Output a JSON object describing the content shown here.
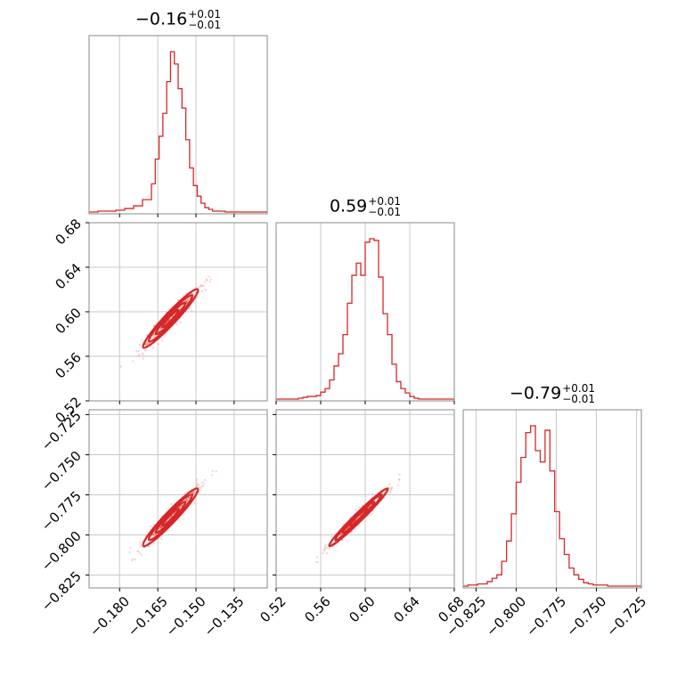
{
  "chart_data": {
    "type": "corner",
    "color": "#d62728",
    "grid": true,
    "parameters": [
      {
        "title": "−0.16",
        "err_plus": "+0.01",
        "err_minus": "−0.01",
        "range": [
          -0.192,
          -0.122
        ],
        "ticks": [
          -0.18,
          -0.165,
          -0.15,
          -0.135
        ],
        "tick_labels": [
          "−0.180",
          "−0.165",
          "−0.150",
          "−0.135"
        ],
        "median": -0.16,
        "sigma": 0.0045
      },
      {
        "title": "0.59",
        "err_plus": "+0.01",
        "err_minus": "−0.01",
        "range": [
          0.52,
          0.68
        ],
        "ticks": [
          0.52,
          0.56,
          0.6,
          0.64,
          0.68
        ],
        "tick_labels": [
          "0.52",
          "0.56",
          "0.60",
          "0.64",
          "0.68"
        ],
        "median": 0.594,
        "sigma": 0.011
      },
      {
        "title": "−0.79",
        "err_plus": "+0.01",
        "err_minus": "−0.01",
        "range": [
          -0.833,
          -0.722
        ],
        "ticks": [
          -0.825,
          -0.8,
          -0.775,
          -0.75,
          -0.725
        ],
        "tick_labels": [
          "−0.825",
          "−0.800",
          "−0.775",
          "−0.750",
          "−0.725"
        ],
        "median": -0.789,
        "sigma": 0.0075
      }
    ],
    "histograms": [
      {
        "parameter": 0,
        "bin_edges": [
          -0.192,
          -0.1885,
          -0.185,
          -0.1815,
          -0.178,
          -0.1745,
          -0.171,
          -0.1675,
          -0.166,
          -0.1645,
          -0.163,
          -0.1615,
          -0.16,
          -0.1585,
          -0.157,
          -0.1555,
          -0.154,
          -0.1525,
          -0.151,
          -0.1495,
          -0.148,
          -0.1465,
          -0.145,
          -0.1435,
          -0.142,
          -0.1385,
          -0.135,
          -0.122
        ],
        "counts": [
          0,
          1,
          1,
          2,
          4,
          7,
          14,
          32,
          60,
          86,
          112,
          148,
          182,
          168,
          140,
          118,
          82,
          50,
          30,
          18,
          10,
          5,
          3,
          1,
          1,
          0,
          0
        ]
      },
      {
        "parameter": 1,
        "bin_edges": [
          0.52,
          0.524,
          0.528,
          0.532,
          0.536,
          0.54,
          0.544,
          0.548,
          0.552,
          0.556,
          0.56,
          0.564,
          0.568,
          0.572,
          0.576,
          0.58,
          0.584,
          0.588,
          0.592,
          0.596,
          0.6,
          0.604,
          0.608,
          0.612,
          0.616,
          0.62,
          0.624,
          0.628,
          0.632,
          0.636,
          0.64,
          0.644,
          0.648,
          0.652,
          0.656,
          0.66,
          0.664,
          0.668,
          0.672,
          0.676,
          0.68
        ],
        "counts": [
          0,
          0,
          0,
          0,
          0,
          1,
          2,
          3,
          3,
          4,
          8,
          12,
          22,
          38,
          52,
          74,
          110,
          142,
          156,
          142,
          180,
          184,
          182,
          140,
          98,
          74,
          40,
          20,
          12,
          7,
          3,
          1,
          0,
          0,
          0,
          0,
          0,
          0,
          0,
          0
        ]
      },
      {
        "parameter": 2,
        "bin_edges": [
          -0.833,
          -0.83,
          -0.827,
          -0.824,
          -0.821,
          -0.818,
          -0.815,
          -0.812,
          -0.809,
          -0.806,
          -0.803,
          -0.8,
          -0.797,
          -0.794,
          -0.791,
          -0.788,
          -0.785,
          -0.782,
          -0.779,
          -0.776,
          -0.773,
          -0.77,
          -0.767,
          -0.764,
          -0.761,
          -0.758,
          -0.755,
          -0.752,
          -0.749,
          -0.746,
          -0.743,
          -0.74,
          -0.737,
          -0.734,
          -0.731,
          -0.728,
          -0.725,
          -0.722
        ],
        "counts": [
          0,
          1,
          1,
          2,
          2,
          4,
          7,
          10,
          22,
          40,
          64,
          92,
          114,
          136,
          142,
          120,
          110,
          138,
          102,
          66,
          42,
          28,
          16,
          10,
          6,
          3,
          2,
          1,
          1,
          1,
          0,
          0,
          0,
          0,
          0,
          0,
          0
        ]
      }
    ],
    "scatter_2d": [
      {
        "x_param": 0,
        "y_param": 1,
        "correlation": 0.96
      },
      {
        "x_param": 0,
        "y_param": 2,
        "correlation": 0.96
      },
      {
        "x_param": 1,
        "y_param": 2,
        "correlation": 0.98
      }
    ]
  }
}
